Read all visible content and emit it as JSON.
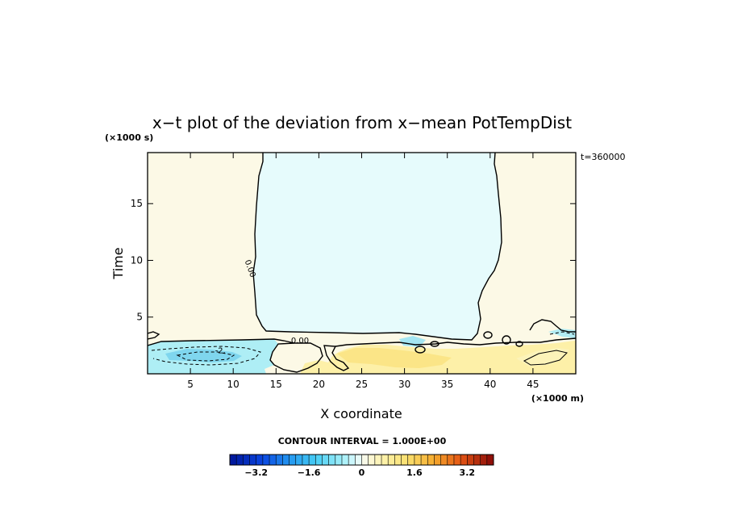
{
  "chart_data": {
    "type": "heatmap",
    "title": "x−t plot of the deviation from x−mean PotTempDist",
    "xlabel": "X coordinate",
    "ylabel": "Time",
    "x_unit": "(×1000 m)",
    "y_unit": "(×1000 s)",
    "time_label": "t=360000",
    "xlim": [
      0,
      50
    ],
    "ylim": [
      0,
      19.5
    ],
    "x_ticks": [
      5,
      10,
      15,
      20,
      25,
      30,
      35,
      40,
      45
    ],
    "x_tick_labels": [
      "5",
      "10",
      "15",
      "20",
      "25",
      "30",
      "35",
      "40",
      "45"
    ],
    "y_ticks": [
      5,
      10,
      15
    ],
    "y_tick_labels": [
      "5",
      "10",
      "15"
    ],
    "contour_interval_text": "CONTOUR INTERVAL = 1.000E+00",
    "contour_labels": [
      {
        "text": "0.00",
        "x": 11.7,
        "y": 9.2,
        "rotate": 70
      },
      {
        "text": "0.00",
        "x": 17.8,
        "y": 2.7,
        "rotate": 0
      },
      {
        "text": "-2.",
        "x": 8.5,
        "y": 1.8,
        "rotate": 0
      }
    ],
    "colorbar": {
      "min": -4.0,
      "max": 4.0,
      "step": 0.2,
      "tick_values": [
        -3.2,
        -1.6,
        0,
        1.6,
        3.2
      ],
      "tick_labels": [
        "−3.2",
        "−1.6",
        "0",
        "1.6",
        "3.2"
      ]
    },
    "regions": [
      {
        "name": "upper-left",
        "value": 0.1,
        "color": "#fcf9e6"
      },
      {
        "name": "upper-center",
        "value": -0.1,
        "color": "#e6fbfc"
      },
      {
        "name": "upper-right",
        "value": 0.1,
        "color": "#fcf9e6"
      },
      {
        "name": "lower-left",
        "value": -1.0,
        "color": "#aeeef5"
      },
      {
        "name": "lower-left-core",
        "value": -1.8,
        "color": "#7fd6ee"
      },
      {
        "name": "lower-center",
        "value": 0.6,
        "color": "#fdf0a8"
      },
      {
        "name": "lower-center-core",
        "value": 1.0,
        "color": "#fbe587"
      },
      {
        "name": "lower-right",
        "value": 0.5,
        "color": "#fcf3b9"
      }
    ]
  }
}
